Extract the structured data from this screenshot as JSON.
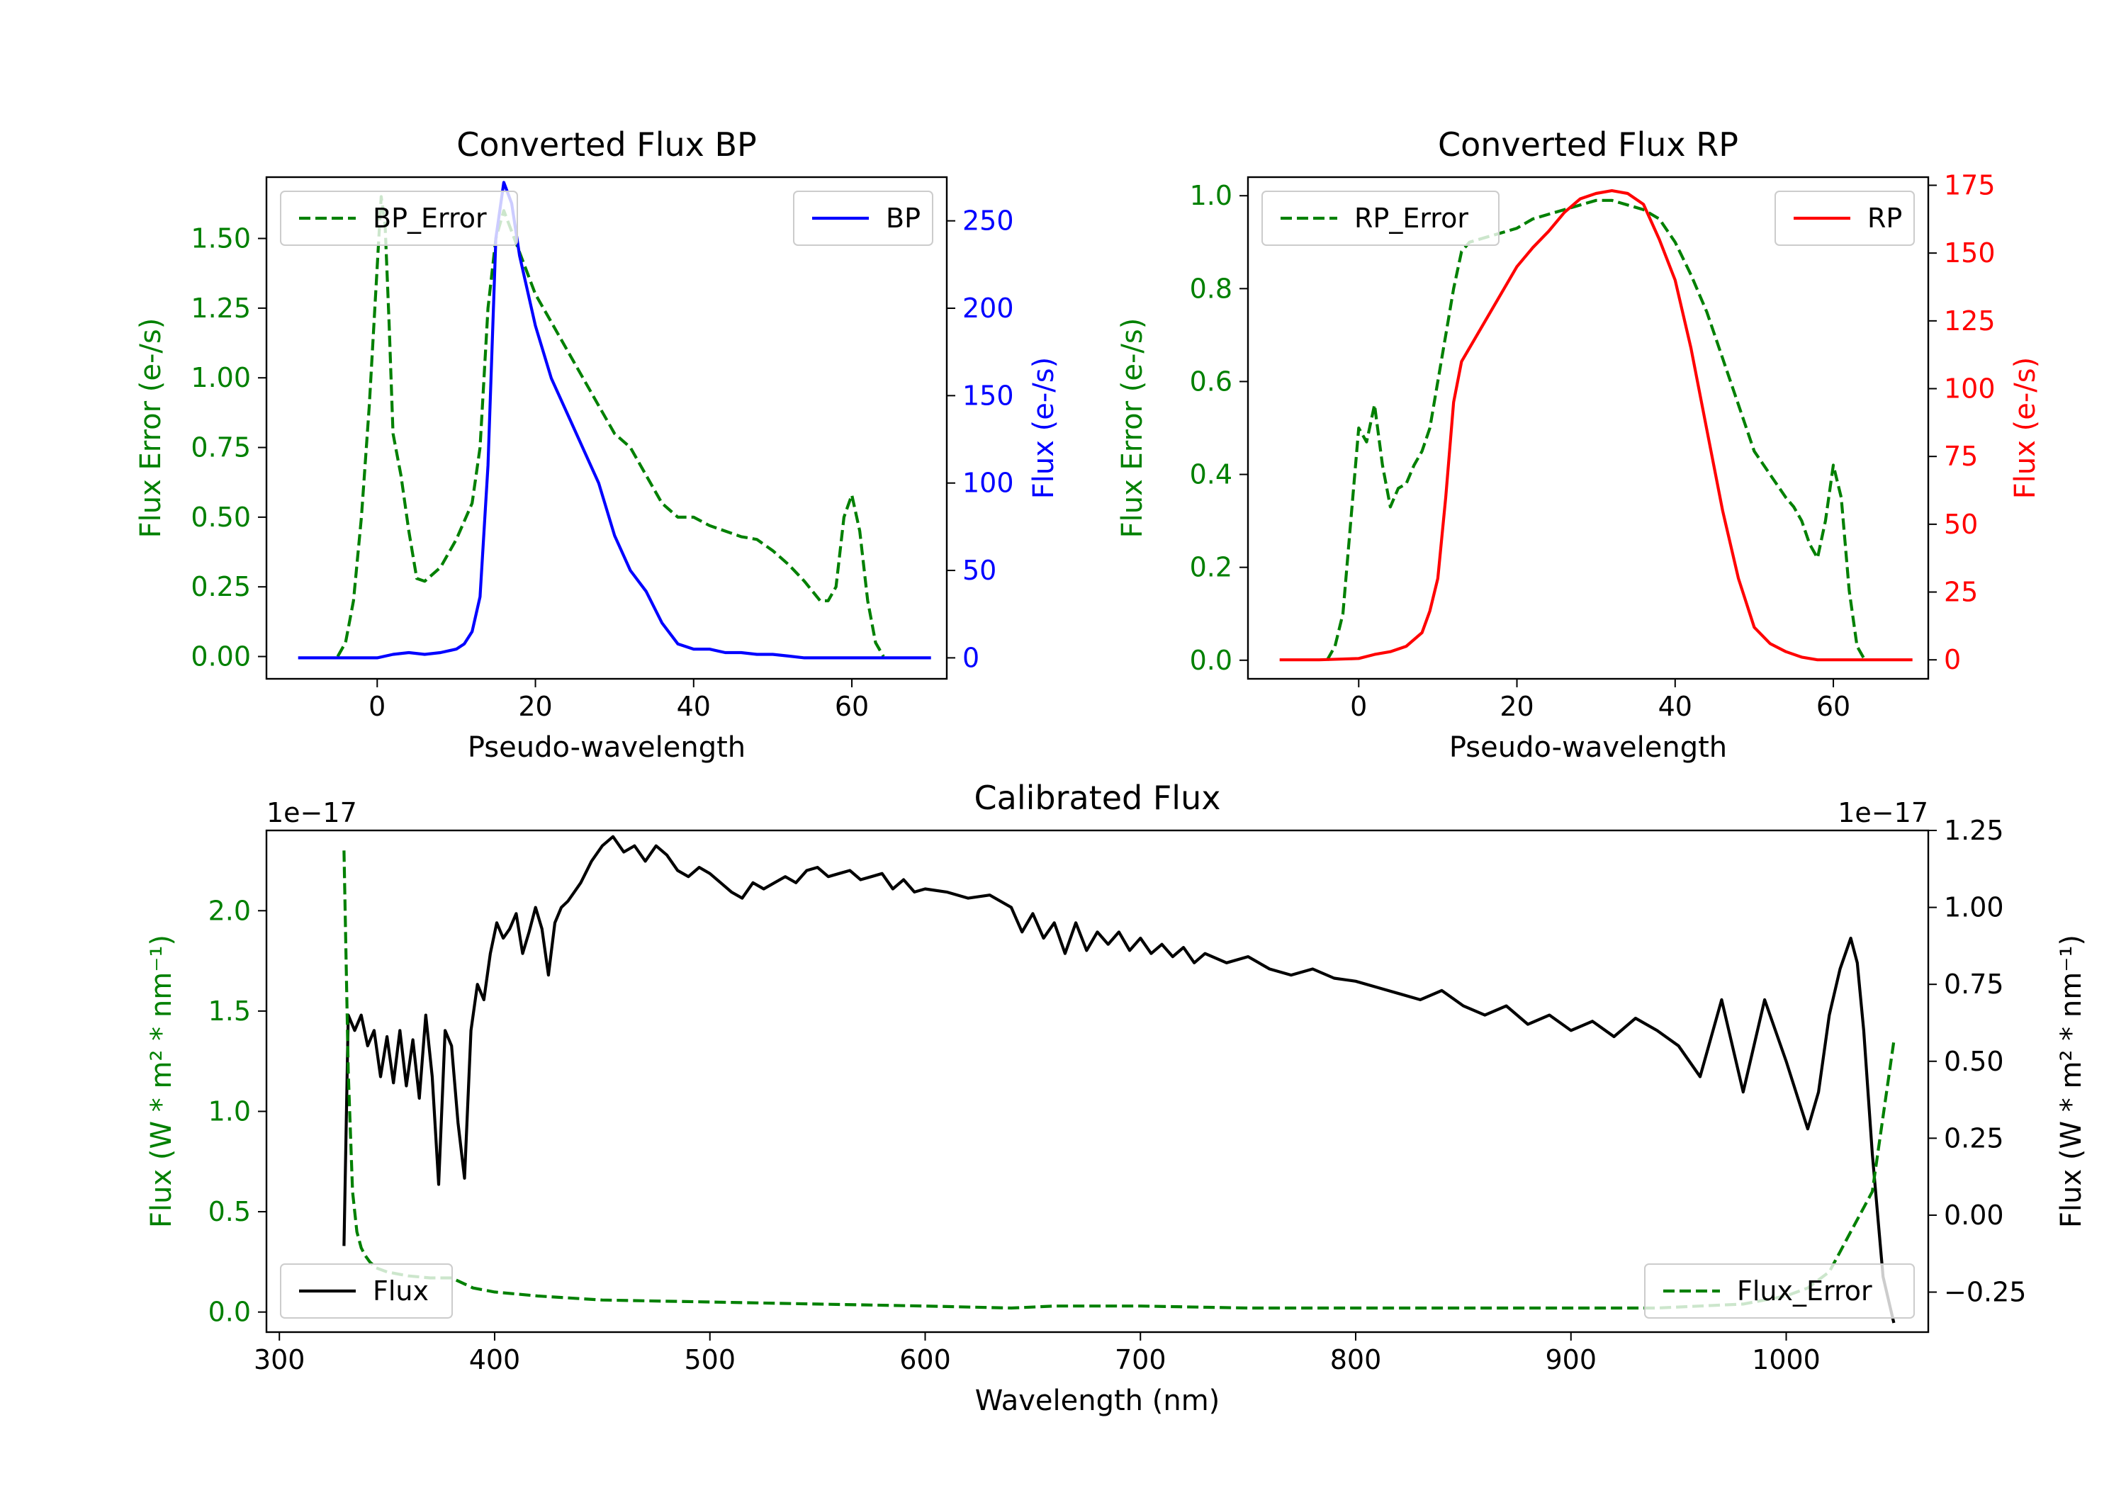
{
  "chart_data": [
    {
      "type": "line",
      "title": "Converted Flux BP",
      "xlabel": "Pseudo-wavelength",
      "xlim": [
        -14,
        72
      ],
      "xticks": [
        0,
        20,
        40,
        60
      ],
      "left_axis": {
        "label": "Flux Error (e-/s)",
        "color": "#008000",
        "ylim": [
          -0.08,
          1.72
        ],
        "ticks": [
          "0.00",
          "0.25",
          "0.50",
          "0.75",
          "1.00",
          "1.25",
          "1.50"
        ]
      },
      "right_axis": {
        "label": "Flux (e-/s)",
        "color": "#0000ff",
        "ylim": [
          -12,
          275
        ],
        "ticks": [
          "0",
          "50",
          "100",
          "150",
          "200",
          "250"
        ]
      },
      "legend_left": "BP_Error",
      "legend_right": "BP",
      "series": [
        {
          "name": "BP_Error",
          "axis": "left",
          "color": "#008000",
          "dashed": true,
          "x": [
            -5,
            -4,
            -3,
            -2,
            -1,
            0,
            0.5,
            1,
            1.5,
            2,
            3,
            4,
            5,
            6,
            8,
            10,
            12,
            13,
            14,
            15,
            16,
            18,
            20,
            22,
            24,
            26,
            28,
            30,
            32,
            34,
            36,
            38,
            40,
            42,
            44,
            46,
            48,
            50,
            52,
            54,
            56,
            57,
            58,
            59,
            60,
            61,
            62,
            63,
            64
          ],
          "y": [
            0,
            0.05,
            0.2,
            0.5,
            0.9,
            1.4,
            1.65,
            1.55,
            1.2,
            0.8,
            0.65,
            0.45,
            0.28,
            0.27,
            0.32,
            0.42,
            0.55,
            0.75,
            1.25,
            1.5,
            1.6,
            1.45,
            1.3,
            1.2,
            1.1,
            1.0,
            0.9,
            0.8,
            0.75,
            0.65,
            0.55,
            0.5,
            0.5,
            0.47,
            0.45,
            0.43,
            0.42,
            0.38,
            0.33,
            0.27,
            0.2,
            0.2,
            0.25,
            0.5,
            0.58,
            0.45,
            0.2,
            0.05,
            0
          ]
        },
        {
          "name": "BP",
          "axis": "right",
          "color": "#0000ff",
          "dashed": false,
          "x": [
            -10,
            -5,
            0,
            2,
            4,
            6,
            8,
            10,
            11,
            12,
            13,
            14,
            15,
            16,
            17,
            18,
            20,
            22,
            24,
            26,
            28,
            30,
            32,
            34,
            36,
            38,
            40,
            42,
            44,
            46,
            48,
            50,
            52,
            54,
            56,
            58,
            60,
            62,
            64,
            66,
            68,
            70
          ],
          "y": [
            0,
            0,
            0,
            2,
            3,
            2,
            3,
            5,
            8,
            15,
            35,
            110,
            240,
            272,
            260,
            230,
            190,
            160,
            140,
            120,
            100,
            70,
            50,
            38,
            20,
            8,
            5,
            5,
            3,
            3,
            2,
            2,
            1,
            0,
            0,
            0,
            0,
            0,
            0,
            0,
            0,
            0
          ]
        }
      ]
    },
    {
      "type": "line",
      "title": "Converted Flux RP",
      "xlabel": "Pseudo-wavelength",
      "xlim": [
        -14,
        72
      ],
      "xticks": [
        0,
        20,
        40,
        60
      ],
      "left_axis": {
        "label": "Flux Error (e-/s)",
        "color": "#008000",
        "ylim": [
          -0.04,
          1.04
        ],
        "ticks": [
          "0.0",
          "0.2",
          "0.4",
          "0.6",
          "0.8",
          "1.0"
        ]
      },
      "right_axis": {
        "label": "Flux (e-/s)",
        "color": "#ff0000",
        "ylim": [
          -7,
          178
        ],
        "ticks": [
          "0",
          "25",
          "50",
          "75",
          "100",
          "125",
          "150",
          "175"
        ]
      },
      "legend_left": "RP_Error",
      "legend_right": "RP",
      "series": [
        {
          "name": "RP_Error",
          "axis": "left",
          "color": "#008000",
          "dashed": true,
          "x": [
            -4,
            -3,
            -2,
            -1,
            0,
            1,
            2,
            3,
            4,
            5,
            6,
            7,
            8,
            9,
            10,
            11,
            12,
            13,
            14,
            16,
            18,
            20,
            22,
            24,
            26,
            28,
            30,
            32,
            34,
            36,
            38,
            40,
            42,
            44,
            46,
            48,
            50,
            52,
            54,
            55,
            56,
            57,
            58,
            59,
            60,
            61,
            62,
            63,
            64
          ],
          "y": [
            0,
            0.03,
            0.1,
            0.3,
            0.5,
            0.47,
            0.55,
            0.42,
            0.33,
            0.37,
            0.38,
            0.42,
            0.45,
            0.5,
            0.6,
            0.7,
            0.8,
            0.88,
            0.9,
            0.91,
            0.92,
            0.93,
            0.95,
            0.96,
            0.97,
            0.98,
            0.99,
            0.99,
            0.98,
            0.97,
            0.95,
            0.9,
            0.83,
            0.75,
            0.65,
            0.55,
            0.45,
            0.4,
            0.35,
            0.33,
            0.3,
            0.25,
            0.22,
            0.3,
            0.42,
            0.35,
            0.15,
            0.03,
            0
          ]
        },
        {
          "name": "RP",
          "axis": "right",
          "color": "#ff0000",
          "dashed": false,
          "x": [
            -10,
            -5,
            0,
            2,
            4,
            6,
            8,
            9,
            10,
            11,
            12,
            13,
            14,
            16,
            18,
            20,
            22,
            24,
            26,
            28,
            30,
            32,
            34,
            36,
            38,
            40,
            42,
            44,
            46,
            48,
            50,
            52,
            54,
            56,
            58,
            60,
            62,
            64,
            66,
            68,
            70
          ],
          "y": [
            0,
            0,
            0.5,
            2,
            3,
            5,
            10,
            18,
            30,
            60,
            95,
            110,
            115,
            125,
            135,
            145,
            152,
            158,
            165,
            170,
            172,
            173,
            172,
            168,
            155,
            140,
            115,
            85,
            55,
            30,
            12,
            6,
            3,
            1,
            0,
            0,
            0,
            0,
            0,
            0,
            0
          ]
        }
      ]
    },
    {
      "type": "line",
      "title": "Calibrated Flux",
      "xlabel": "Wavelength (nm)",
      "xlim": [
        294,
        1066
      ],
      "xticks": [
        300,
        400,
        500,
        600,
        700,
        800,
        900,
        1000
      ],
      "left_axis": {
        "label": "Flux (W * m² * nm⁻¹)",
        "color": "#008000",
        "ylim": [
          -0.1,
          2.4
        ],
        "ticks": [
          "0.0",
          "0.5",
          "1.0",
          "1.5",
          "2.0"
        ],
        "offset": "1e−17"
      },
      "right_axis": {
        "label": "Flux (W * m² * nm⁻¹)",
        "color": "#000000",
        "ylim": [
          -0.38,
          1.25
        ],
        "ticks": [
          "−0.25",
          "0.00",
          "0.25",
          "0.50",
          "0.75",
          "1.00",
          "1.25"
        ],
        "offset": "1e−17"
      },
      "legend_left": "Flux",
      "legend_right": "Flux_Error",
      "series": [
        {
          "name": "Flux",
          "axis": "right",
          "color": "#000000",
          "dashed": false,
          "x": [
            330,
            332,
            335,
            338,
            341,
            344,
            347,
            350,
            353,
            356,
            359,
            362,
            365,
            368,
            371,
            374,
            377,
            380,
            383,
            386,
            389,
            392,
            395,
            398,
            401,
            404,
            407,
            410,
            413,
            416,
            419,
            422,
            425,
            428,
            431,
            434,
            437,
            440,
            445,
            450,
            455,
            460,
            465,
            470,
            475,
            480,
            485,
            490,
            495,
            500,
            505,
            510,
            515,
            520,
            525,
            530,
            535,
            540,
            545,
            550,
            555,
            560,
            565,
            570,
            575,
            580,
            585,
            590,
            595,
            600,
            610,
            620,
            630,
            640,
            645,
            650,
            655,
            660,
            665,
            670,
            675,
            680,
            685,
            690,
            695,
            700,
            705,
            710,
            715,
            720,
            725,
            730,
            740,
            750,
            760,
            770,
            780,
            790,
            800,
            810,
            820,
            830,
            840,
            850,
            860,
            870,
            880,
            890,
            900,
            910,
            920,
            930,
            940,
            950,
            960,
            970,
            980,
            990,
            1000,
            1010,
            1015,
            1020,
            1025,
            1030,
            1033,
            1036,
            1040,
            1045,
            1050
          ],
          "y": [
            -0.1,
            0.65,
            0.6,
            0.65,
            0.55,
            0.6,
            0.45,
            0.58,
            0.43,
            0.6,
            0.42,
            0.57,
            0.38,
            0.65,
            0.45,
            0.1,
            0.6,
            0.55,
            0.3,
            0.12,
            0.6,
            0.75,
            0.7,
            0.85,
            0.95,
            0.9,
            0.93,
            0.98,
            0.85,
            0.92,
            1.0,
            0.93,
            0.78,
            0.95,
            1.0,
            1.02,
            1.05,
            1.08,
            1.15,
            1.2,
            1.23,
            1.18,
            1.2,
            1.15,
            1.2,
            1.17,
            1.12,
            1.1,
            1.13,
            1.11,
            1.08,
            1.05,
            1.03,
            1.08,
            1.06,
            1.08,
            1.1,
            1.08,
            1.12,
            1.13,
            1.1,
            1.11,
            1.12,
            1.09,
            1.1,
            1.11,
            1.06,
            1.09,
            1.05,
            1.06,
            1.05,
            1.03,
            1.04,
            1.0,
            0.92,
            0.98,
            0.9,
            0.95,
            0.85,
            0.95,
            0.86,
            0.92,
            0.88,
            0.92,
            0.86,
            0.9,
            0.85,
            0.88,
            0.84,
            0.87,
            0.82,
            0.85,
            0.82,
            0.84,
            0.8,
            0.78,
            0.8,
            0.77,
            0.76,
            0.74,
            0.72,
            0.7,
            0.73,
            0.68,
            0.65,
            0.68,
            0.62,
            0.65,
            0.6,
            0.63,
            0.58,
            0.64,
            0.6,
            0.55,
            0.45,
            0.7,
            0.4,
            0.7,
            0.5,
            0.28,
            0.4,
            0.65,
            0.8,
            0.9,
            0.82,
            0.6,
            0.2,
            -0.2,
            -0.35
          ]
        },
        {
          "name": "Flux_Error",
          "axis": "left",
          "color": "#008000",
          "dashed": true,
          "x": [
            330,
            332,
            334,
            336,
            338,
            340,
            342,
            345,
            350,
            355,
            360,
            370,
            380,
            390,
            400,
            420,
            450,
            500,
            550,
            600,
            640,
            660,
            700,
            750,
            800,
            850,
            900,
            940,
            960,
            980,
            1000,
            1010,
            1020,
            1025,
            1030,
            1040,
            1050
          ],
          "y": [
            2.3,
            1.2,
            0.6,
            0.4,
            0.32,
            0.28,
            0.25,
            0.22,
            0.2,
            0.19,
            0.18,
            0.17,
            0.17,
            0.12,
            0.1,
            0.08,
            0.06,
            0.05,
            0.04,
            0.03,
            0.02,
            0.03,
            0.03,
            0.02,
            0.02,
            0.02,
            0.02,
            0.02,
            0.03,
            0.04,
            0.08,
            0.12,
            0.2,
            0.3,
            0.4,
            0.6,
            1.35
          ]
        }
      ]
    }
  ]
}
